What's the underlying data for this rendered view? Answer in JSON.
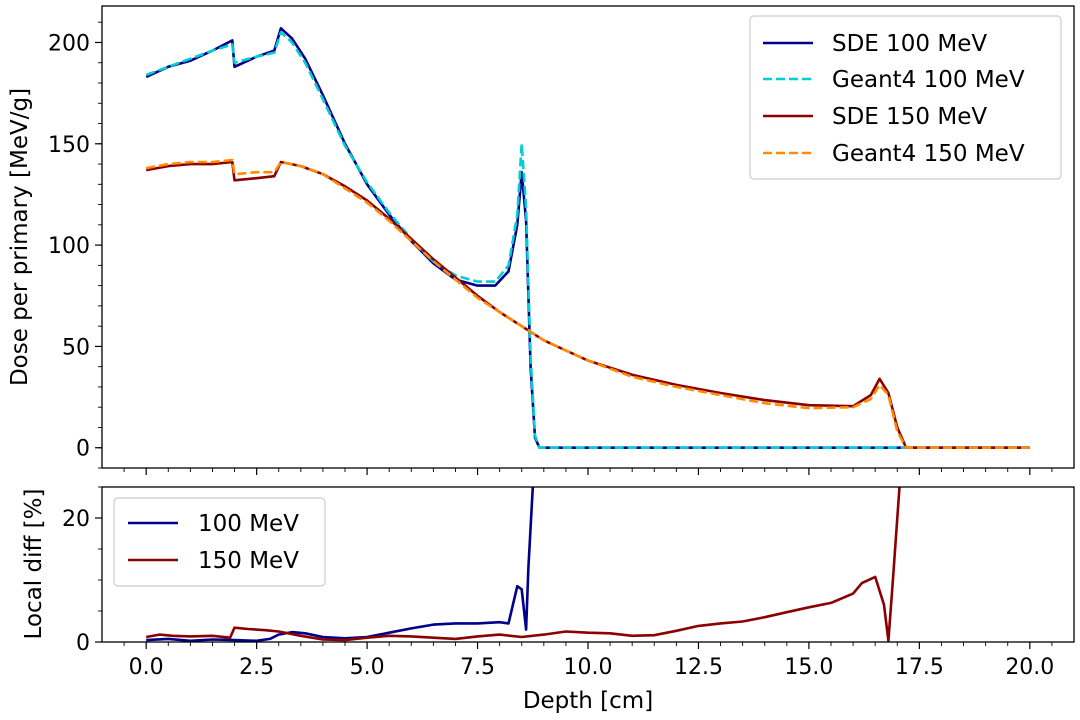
{
  "chart_data": [
    {
      "type": "line",
      "panel": "top",
      "xlabel": "",
      "ylabel": "Dose per primary [MeV/g]",
      "xlim": [
        -1.0,
        21.0
      ],
      "ylim": [
        -10,
        218
      ],
      "x_ticks": [
        0.0,
        2.5,
        5.0,
        7.5,
        10.0,
        12.5,
        15.0,
        17.5,
        20.0
      ],
      "y_ticks": [
        0,
        50,
        100,
        150,
        200
      ],
      "y_tick_labels": [
        "0",
        "50",
        "100",
        "150",
        "200"
      ],
      "legend": {
        "position": "top-right",
        "entries": [
          "SDE 100 MeV",
          "Geant4 100 MeV",
          "SDE 150 MeV",
          "Geant4 150 MeV"
        ]
      },
      "series": [
        {
          "name": "SDE 100 MeV",
          "color": "#00008b",
          "style": "solid",
          "points": [
            [
              0,
              183
            ],
            [
              0.5,
              188
            ],
            [
              1.0,
              191
            ],
            [
              1.5,
              196
            ],
            [
              1.95,
              201
            ],
            [
              2.0,
              188
            ],
            [
              2.5,
              193
            ],
            [
              2.9,
              196
            ],
            [
              3.05,
              207
            ],
            [
              3.3,
              202
            ],
            [
              3.6,
              192
            ],
            [
              4.0,
              174
            ],
            [
              4.5,
              150
            ],
            [
              5.0,
              130
            ],
            [
              5.5,
              115
            ],
            [
              6.0,
              102
            ],
            [
              6.5,
              91
            ],
            [
              7.0,
              83
            ],
            [
              7.5,
              80
            ],
            [
              7.9,
              80
            ],
            [
              8.2,
              87
            ],
            [
              8.4,
              110
            ],
            [
              8.5,
              136
            ],
            [
              8.6,
              112
            ],
            [
              8.7,
              40
            ],
            [
              8.8,
              5
            ],
            [
              8.9,
              0
            ],
            [
              20,
              0
            ]
          ]
        },
        {
          "name": "Geant4 100 MeV",
          "color": "#00ced1",
          "style": "dashed",
          "points": [
            [
              0,
              184
            ],
            [
              0.5,
              188
            ],
            [
              1.0,
              192
            ],
            [
              1.5,
              196
            ],
            [
              1.95,
              199
            ],
            [
              2.0,
              190
            ],
            [
              2.5,
              193
            ],
            [
              2.9,
              195
            ],
            [
              3.05,
              205
            ],
            [
              3.3,
              200
            ],
            [
              3.6,
              190
            ],
            [
              4.0,
              172
            ],
            [
              4.5,
              149
            ],
            [
              5.0,
              131
            ],
            [
              5.5,
              116
            ],
            [
              6.0,
              103
            ],
            [
              6.5,
              92
            ],
            [
              7.0,
              85
            ],
            [
              7.5,
              82
            ],
            [
              7.9,
              82
            ],
            [
              8.2,
              90
            ],
            [
              8.4,
              115
            ],
            [
              8.5,
              150
            ],
            [
              8.6,
              118
            ],
            [
              8.7,
              45
            ],
            [
              8.8,
              6
            ],
            [
              8.9,
              0
            ],
            [
              20,
              0
            ]
          ]
        },
        {
          "name": "SDE 150 MeV",
          "color": "#8b0000",
          "style": "solid",
          "points": [
            [
              0,
              137
            ],
            [
              0.5,
              139
            ],
            [
              1.0,
              140
            ],
            [
              1.5,
              140
            ],
            [
              1.95,
              141
            ],
            [
              2.0,
              132
            ],
            [
              2.5,
              133
            ],
            [
              2.9,
              134
            ],
            [
              3.05,
              141
            ],
            [
              3.5,
              139
            ],
            [
              4.0,
              135
            ],
            [
              4.5,
              129
            ],
            [
              5.0,
              122
            ],
            [
              5.5,
              113
            ],
            [
              6.0,
              103
            ],
            [
              6.5,
              93
            ],
            [
              7.0,
              84
            ],
            [
              7.5,
              75
            ],
            [
              8.0,
              67
            ],
            [
              8.5,
              60
            ],
            [
              9.0,
              53
            ],
            [
              9.5,
              48
            ],
            [
              10.0,
              43
            ],
            [
              11.0,
              36
            ],
            [
              12.0,
              31
            ],
            [
              13.0,
              27
            ],
            [
              14.0,
              23.5
            ],
            [
              15.0,
              21
            ],
            [
              16.0,
              20.5
            ],
            [
              16.4,
              26
            ],
            [
              16.6,
              34
            ],
            [
              16.8,
              27
            ],
            [
              17.0,
              10
            ],
            [
              17.2,
              0
            ],
            [
              20,
              0
            ]
          ]
        },
        {
          "name": "Geant4 150 MeV",
          "color": "#ff8c00",
          "style": "dashed",
          "points": [
            [
              0,
              138
            ],
            [
              0.5,
              140
            ],
            [
              1.0,
              141
            ],
            [
              1.5,
              141
            ],
            [
              1.95,
              142
            ],
            [
              2.0,
              135
            ],
            [
              2.5,
              136
            ],
            [
              2.9,
              136
            ],
            [
              3.05,
              141
            ],
            [
              3.5,
              139
            ],
            [
              4.0,
              135
            ],
            [
              4.5,
              128
            ],
            [
              5.0,
              121
            ],
            [
              5.5,
              112
            ],
            [
              6.0,
              102
            ],
            [
              6.5,
              92
            ],
            [
              7.0,
              83
            ],
            [
              7.5,
              74
            ],
            [
              8.0,
              67
            ],
            [
              8.5,
              60
            ],
            [
              9.0,
              53
            ],
            [
              9.5,
              48
            ],
            [
              10.0,
              43
            ],
            [
              11.0,
              35
            ],
            [
              12.0,
              30
            ],
            [
              13.0,
              26
            ],
            [
              14.0,
              22
            ],
            [
              15.0,
              19.5
            ],
            [
              16.0,
              20
            ],
            [
              16.4,
              24
            ],
            [
              16.6,
              31
            ],
            [
              16.8,
              26
            ],
            [
              17.0,
              8
            ],
            [
              17.2,
              0
            ],
            [
              20,
              0
            ]
          ]
        }
      ]
    },
    {
      "type": "line",
      "panel": "bottom",
      "xlabel": "Depth [cm]",
      "ylabel": "Local diff [%]",
      "xlim": [
        -1.0,
        21.0
      ],
      "ylim": [
        0,
        25
      ],
      "x_ticks": [
        0.0,
        2.5,
        5.0,
        7.5,
        10.0,
        12.5,
        15.0,
        17.5,
        20.0
      ],
      "x_tick_labels": [
        "0.0",
        "2.5",
        "5.0",
        "7.5",
        "10.0",
        "12.5",
        "15.0",
        "17.5",
        "20.0"
      ],
      "y_ticks": [
        0,
        20
      ],
      "y_tick_labels": [
        "0",
        "20"
      ],
      "legend": {
        "position": "top-left",
        "entries": [
          "100 MeV",
          "150 MeV"
        ]
      },
      "series": [
        {
          "name": "100 MeV",
          "color": "#00008b",
          "style": "solid",
          "points": [
            [
              0,
              0.3
            ],
            [
              0.5,
              0.5
            ],
            [
              1.0,
              0.2
            ],
            [
              1.5,
              0.4
            ],
            [
              2.0,
              0.3
            ],
            [
              2.5,
              0.2
            ],
            [
              2.8,
              0.5
            ],
            [
              3.0,
              1.2
            ],
            [
              3.3,
              1.6
            ],
            [
              3.6,
              1.4
            ],
            [
              4.0,
              0.8
            ],
            [
              4.5,
              0.6
            ],
            [
              5.0,
              0.8
            ],
            [
              5.5,
              1.5
            ],
            [
              6.0,
              2.2
            ],
            [
              6.5,
              2.8
            ],
            [
              7.0,
              3.0
            ],
            [
              7.5,
              3.0
            ],
            [
              8.0,
              3.2
            ],
            [
              8.2,
              3.0
            ],
            [
              8.4,
              9
            ],
            [
              8.5,
              8.5
            ],
            [
              8.6,
              2.0
            ],
            [
              8.65,
              12
            ],
            [
              8.75,
              25
            ]
          ]
        },
        {
          "name": "150 MeV",
          "color": "#8b0000",
          "style": "solid",
          "points": [
            [
              0,
              0.8
            ],
            [
              0.3,
              1.2
            ],
            [
              0.6,
              1.0
            ],
            [
              1.0,
              0.9
            ],
            [
              1.5,
              1.0
            ],
            [
              1.9,
              0.7
            ],
            [
              2.0,
              2.3
            ],
            [
              2.3,
              2.1
            ],
            [
              2.7,
              1.9
            ],
            [
              3.0,
              1.7
            ],
            [
              3.5,
              1.0
            ],
            [
              4.0,
              0.4
            ],
            [
              4.5,
              0.3
            ],
            [
              5.0,
              0.7
            ],
            [
              5.5,
              1.0
            ],
            [
              6.0,
              0.9
            ],
            [
              6.5,
              0.7
            ],
            [
              7.0,
              0.5
            ],
            [
              7.5,
              0.9
            ],
            [
              8.0,
              1.2
            ],
            [
              8.5,
              0.8
            ],
            [
              9.0,
              1.2
            ],
            [
              9.5,
              1.7
            ],
            [
              10.0,
              1.5
            ],
            [
              10.5,
              1.4
            ],
            [
              11.0,
              1.0
            ],
            [
              11.5,
              1.1
            ],
            [
              12.0,
              1.8
            ],
            [
              12.5,
              2.6
            ],
            [
              13.0,
              3.0
            ],
            [
              13.5,
              3.3
            ],
            [
              14.0,
              4.0
            ],
            [
              14.5,
              4.8
            ],
            [
              15.0,
              5.6
            ],
            [
              15.5,
              6.3
            ],
            [
              16.0,
              7.8
            ],
            [
              16.2,
              9.5
            ],
            [
              16.5,
              10.5
            ],
            [
              16.7,
              6
            ],
            [
              16.8,
              0.2
            ],
            [
              16.9,
              10
            ],
            [
              17.05,
              25
            ]
          ]
        }
      ]
    }
  ]
}
